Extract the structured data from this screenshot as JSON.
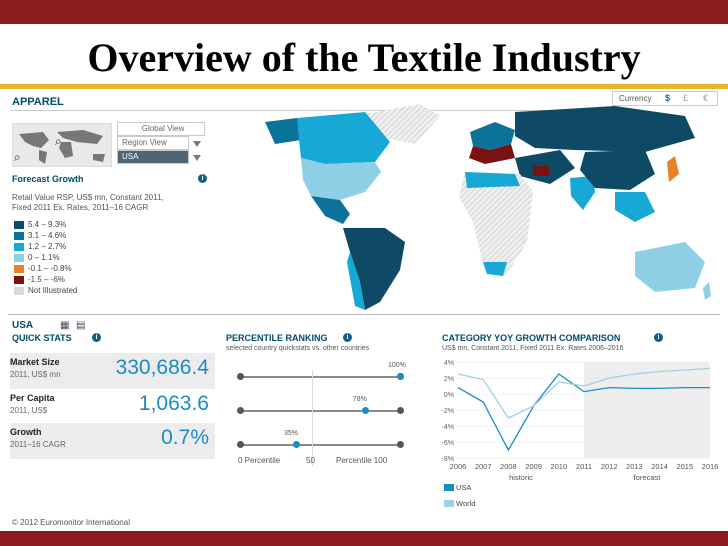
{
  "slide": {
    "title": "Overview of the Textile Industry"
  },
  "header": {
    "section": "APPAREL",
    "currency_label": "Currency",
    "currency_symbols": [
      "$",
      "£",
      "€"
    ]
  },
  "selectors": {
    "global_view": "Global View",
    "region_view": "Region View",
    "country": "USA"
  },
  "forecast": {
    "title": "Forecast Growth",
    "desc_line1": "Retail Value RSP, US$ mn, Constant 2011,",
    "desc_line2": "Fixed 2011 Ex. Rates, 2011–16 CAGR",
    "legend": [
      {
        "label": "5.4 – 9.3%",
        "color": "#0e4a66"
      },
      {
        "label": "3.1 – 4.6%",
        "color": "#0b7299"
      },
      {
        "label": "1.2 – 2.7%",
        "color": "#18a8d6"
      },
      {
        "label": "0 – 1.1%",
        "color": "#8fcfe6"
      },
      {
        "label": "-0.1 – -0.8%",
        "color": "#e8822a"
      },
      {
        "label": "-1.5 – -6%",
        "color": "#7a1212"
      },
      {
        "label": "Not Illustrated",
        "color": "#d9d9d9"
      }
    ]
  },
  "quickstats": {
    "country": "USA",
    "title": "QUICK STATS",
    "rows": [
      {
        "label": "Market Size",
        "sub": "2011, US$ mn",
        "value": "330,686.4"
      },
      {
        "label": "Per Capita",
        "sub": "2011, US$",
        "value": "1,063.6"
      },
      {
        "label": "Growth",
        "sub": "2011–16 CAGR",
        "value": "0.7%"
      }
    ]
  },
  "percentile": {
    "title": "PERCENTILE RANKING",
    "subtitle": "selected country quickstats vs. other countries",
    "rows": [
      {
        "label": "100%",
        "value": 100
      },
      {
        "label": "78%",
        "value": 78
      },
      {
        "label": "35%",
        "value": 35
      }
    ],
    "axis_left": "0 Percentile",
    "axis_mid": "50",
    "axis_right": "Percentile 100"
  },
  "chart_data": {
    "type": "line",
    "title": "CATEGORY YOY GROWTH COMPARISON",
    "subtitle": "US$ mn, Constant 2011, Fixed 2011 Ex. Rates 2006–2016",
    "x": [
      "2006",
      "2007",
      "2008",
      "2009",
      "2010",
      "2011",
      "2012",
      "2013",
      "2014",
      "2015",
      "2016"
    ],
    "y_ticks": [
      "4%",
      "2%",
      "0%",
      "-2%",
      "-4%",
      "-6%",
      "-8%"
    ],
    "ylim": [
      -8,
      4
    ],
    "series": [
      {
        "name": "USA",
        "color": "#1a8dbf",
        "values": [
          0.8,
          -1.0,
          -7.0,
          -1.5,
          2.5,
          0.3,
          0.8,
          0.7,
          0.7,
          0.8,
          0.8
        ]
      },
      {
        "name": "World",
        "color": "#9fd0e6",
        "values": [
          2.5,
          1.8,
          -3.0,
          -1.5,
          1.5,
          1.0,
          2.0,
          2.5,
          2.8,
          3.0,
          3.2
        ]
      }
    ],
    "historic_label": "historic",
    "forecast_label": "forecast",
    "forecast_start": "2011"
  },
  "footer": {
    "copyright": "© 2012 Euromonitor International"
  }
}
